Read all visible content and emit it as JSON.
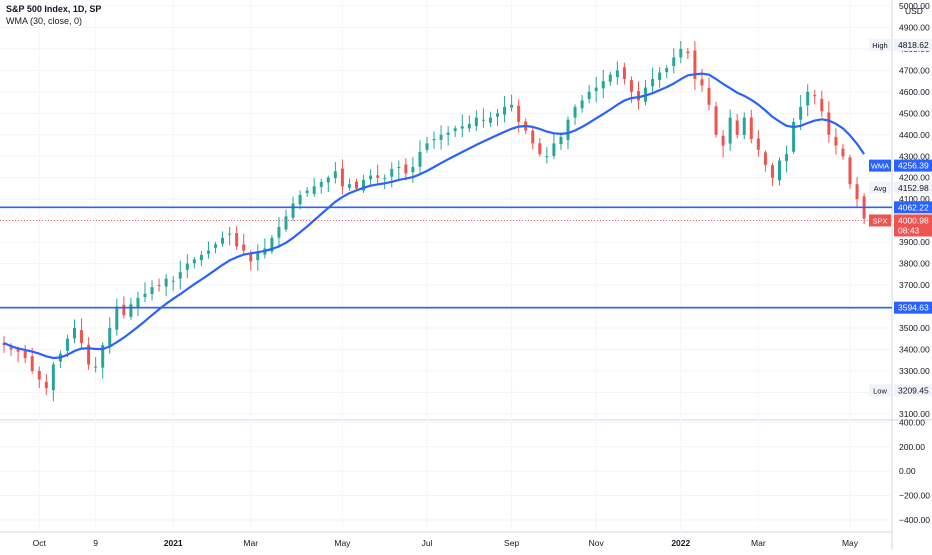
{
  "header": {
    "title": "S&P 500 Index, 1D, SP",
    "indicator": "WMA (30, close, 0)"
  },
  "chart_data": {
    "type": "candlestick",
    "currency": "USD",
    "price_axis": {
      "ticks": [
        3100,
        3200,
        3300,
        3400,
        3500,
        3600,
        3700,
        3800,
        3900,
        4000,
        4100,
        4200,
        4300,
        4400,
        4500,
        4600,
        4700,
        4800,
        4900,
        5000
      ],
      "tick_labels": [
        "3100.00",
        "3200.00",
        "3300.00",
        "3400.00",
        "3500.00",
        "3600.00",
        "3700.00",
        "3800.00",
        "3900.00",
        "4000.00",
        "4100.00",
        "4200.00",
        "4300.00",
        "4400.00",
        "4500.00",
        "4600.00",
        "4700.00",
        "4800.00",
        "4900.00",
        "5000.00"
      ],
      "range": [
        3090,
        5000
      ]
    },
    "oscillator_axis": {
      "ticks": [
        400,
        200,
        0,
        -200,
        -400
      ],
      "tick_labels": [
        "400.00",
        "200.00",
        "0.00",
        "−200.00",
        "−400.00"
      ],
      "range": [
        -500,
        420
      ]
    },
    "time_axis": {
      "ticks": [
        {
          "label": "Oct",
          "bold": false,
          "index": 5
        },
        {
          "label": "9",
          "bold": false,
          "index": 13
        },
        {
          "label": "2021",
          "bold": true,
          "index": 24
        },
        {
          "label": "Mar",
          "bold": false,
          "index": 35
        },
        {
          "label": "May",
          "bold": false,
          "index": 48
        },
        {
          "label": "Jul",
          "bold": false,
          "index": 60
        },
        {
          "label": "Sep",
          "bold": false,
          "index": 72
        },
        {
          "label": "Nov",
          "bold": false,
          "index": 84
        },
        {
          "label": "2022",
          "bold": true,
          "index": 96
        },
        {
          "label": "Mar",
          "bold": false,
          "index": 107
        },
        {
          "label": "May",
          "bold": false,
          "index": 120
        }
      ],
      "count": 123
    },
    "closes": [
      3420,
      3400,
      3390,
      3360,
      3300,
      3260,
      3220,
      3330,
      3380,
      3450,
      3500,
      3430,
      3330,
      3320,
      3420,
      3500,
      3600,
      3560,
      3610,
      3640,
      3660,
      3690,
      3700,
      3730,
      3720,
      3760,
      3800,
      3820,
      3840,
      3860,
      3890,
      3920,
      3940,
      3880,
      3860,
      3810,
      3850,
      3870,
      3920,
      3970,
      4020,
      4080,
      4120,
      4140,
      4160,
      4180,
      4200,
      4230,
      4160,
      4170,
      4150,
      4190,
      4210,
      4200,
      4200,
      4240,
      4250,
      4220,
      4250,
      4320,
      4360,
      4380,
      4400,
      4410,
      4430,
      4440,
      4450,
      4480,
      4470,
      4480,
      4500,
      4530,
      4540,
      4460,
      4420,
      4360,
      4310,
      4300,
      4360,
      4390,
      4470,
      4530,
      4560,
      4600,
      4620,
      4650,
      4680,
      4700,
      4660,
      4600,
      4560,
      4620,
      4660,
      4690,
      4710,
      4760,
      4800,
      4780,
      4660,
      4630,
      4540,
      4400,
      4350,
      4480,
      4400,
      4480,
      4380,
      4330,
      4260,
      4200,
      4280,
      4310,
      4460,
      4530,
      4600,
      4580,
      4510,
      4400,
      4350,
      4300,
      4170,
      4100,
      4010
    ],
    "wma": [
      3430,
      3415,
      3405,
      3398,
      3390,
      3380,
      3368,
      3360,
      3363,
      3375,
      3393,
      3404,
      3406,
      3402,
      3402,
      3414,
      3434,
      3455,
      3480,
      3505,
      3532,
      3560,
      3587,
      3613,
      3636,
      3658,
      3681,
      3704,
      3726,
      3748,
      3771,
      3794,
      3815,
      3830,
      3842,
      3848,
      3853,
      3859,
      3868,
      3880,
      3897,
      3920,
      3946,
      3973,
      4002,
      4031,
      4060,
      4088,
      4110,
      4128,
      4141,
      4153,
      4163,
      4169,
      4174,
      4181,
      4190,
      4196,
      4203,
      4216,
      4232,
      4250,
      4268,
      4286,
      4303,
      4320,
      4336,
      4353,
      4369,
      4384,
      4399,
      4414,
      4428,
      4438,
      4441,
      4437,
      4427,
      4415,
      4407,
      4404,
      4408,
      4420,
      4437,
      4456,
      4477,
      4497,
      4518,
      4540,
      4560,
      4571,
      4575,
      4583,
      4594,
      4608,
      4622,
      4639,
      4659,
      4677,
      4682,
      4685,
      4680,
      4660,
      4637,
      4617,
      4596,
      4581,
      4563,
      4540,
      4513,
      4484,
      4462,
      4442,
      4436,
      4442,
      4455,
      4466,
      4472,
      4466,
      4451,
      4430,
      4397,
      4358,
      4310
    ],
    "horizontal_levels": [
      {
        "value": 4062.22,
        "label": "4062.22"
      },
      {
        "value": 3594.63,
        "label": "3594.63"
      }
    ],
    "markers": {
      "high": {
        "label": "High",
        "value_label": "4818.62",
        "value": 4818.62
      },
      "low": {
        "label": "Low",
        "value_label": "3209.45",
        "value": 3209.45
      },
      "avg": {
        "label": "Avg",
        "value_label": "4152.98",
        "value": 4152.98
      },
      "wma": {
        "label": "WMA",
        "value_label": "4256.39",
        "value": 4256.39
      },
      "last": {
        "label": "SPX",
        "value_label": "4000.98",
        "countdown": "08:43",
        "value": 4000.98
      }
    },
    "colors": {
      "up": "#26a69a",
      "down": "#ef5350",
      "wma_line": "#2962ff",
      "level_line": "#2962ff",
      "last_price": "#ef5350"
    }
  }
}
